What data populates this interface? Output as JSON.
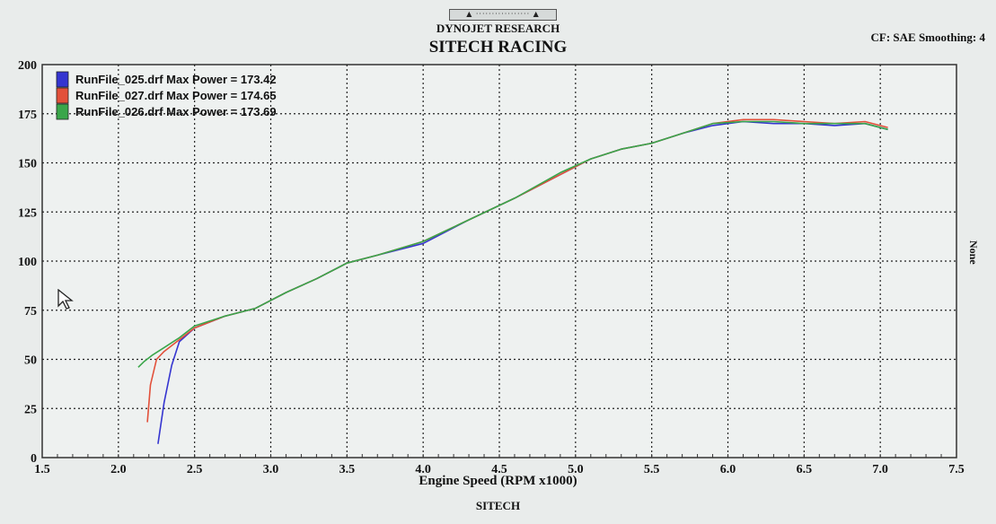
{
  "header": {
    "scroll_label": "▲ ················· ▲",
    "company": "DYNOJET RESEARCH",
    "title": "SITECH RACING",
    "cf_info": "CF: SAE  Smoothing: 4",
    "right_axis_label": "None",
    "footer": "SITECH"
  },
  "chart_data": {
    "type": "line",
    "title": "SITECH RACING",
    "xlabel": "Engine Speed (RPM x1000)",
    "ylabel": "",
    "xlim": [
      1.5,
      7.5
    ],
    "ylim": [
      0,
      200
    ],
    "x_ticks": [
      "1.5",
      "2.0",
      "2.5",
      "3.0",
      "3.5",
      "4.0",
      "4.5",
      "5.0",
      "5.5",
      "6.0",
      "6.5",
      "7.0",
      "7.5"
    ],
    "y_ticks": [
      "0",
      "25",
      "50",
      "75",
      "100",
      "125",
      "150",
      "175",
      "200"
    ],
    "grid": true,
    "legend_position": "top-left",
    "series": [
      {
        "name": "RunFile_025.drf Max Power = 173.42",
        "color": "#3535d0",
        "x": [
          2.26,
          2.3,
          2.35,
          2.4,
          2.5,
          2.7,
          2.9,
          3.1,
          3.3,
          3.5,
          3.7,
          4.0,
          4.3,
          4.6,
          4.9,
          5.1,
          5.3,
          5.5,
          5.7,
          5.9,
          6.1,
          6.3,
          6.5,
          6.7,
          6.9,
          7.05
        ],
        "y": [
          7,
          28,
          47,
          59,
          66,
          72,
          76,
          84,
          91,
          99,
          103,
          109,
          121,
          132,
          144,
          152,
          157,
          160,
          165,
          169,
          171,
          170,
          170,
          169,
          170,
          167
        ]
      },
      {
        "name": "RunFile_027.drf Max Power = 174.65",
        "color": "#e2503a",
        "x": [
          2.19,
          2.21,
          2.25,
          2.3,
          2.4,
          2.5,
          2.7,
          2.9,
          3.1,
          3.3,
          3.5,
          3.7,
          4.0,
          4.3,
          4.6,
          4.9,
          5.1,
          5.3,
          5.5,
          5.7,
          5.9,
          6.1,
          6.3,
          6.5,
          6.7,
          6.9,
          7.05
        ],
        "y": [
          18,
          37,
          50,
          54,
          60,
          66,
          72,
          76,
          84,
          91,
          99,
          103,
          110,
          121,
          132,
          144,
          152,
          157,
          160,
          165,
          170,
          172,
          172,
          171,
          170,
          171,
          168
        ]
      },
      {
        "name": "RunFile_026.drf Max Power = 173.69",
        "color": "#3aa64a",
        "x": [
          2.13,
          2.17,
          2.22,
          2.3,
          2.4,
          2.5,
          2.7,
          2.9,
          3.1,
          3.3,
          3.5,
          3.7,
          4.0,
          4.3,
          4.6,
          4.9,
          5.1,
          5.3,
          5.5,
          5.7,
          5.9,
          6.1,
          6.3,
          6.5,
          6.7,
          6.9,
          7.05
        ],
        "y": [
          46,
          49,
          52,
          56,
          61,
          67,
          72,
          76,
          84,
          91,
          99,
          103,
          110,
          121,
          132,
          145,
          152,
          157,
          160,
          165,
          170,
          171,
          171,
          170,
          170,
          170,
          167
        ]
      }
    ]
  }
}
